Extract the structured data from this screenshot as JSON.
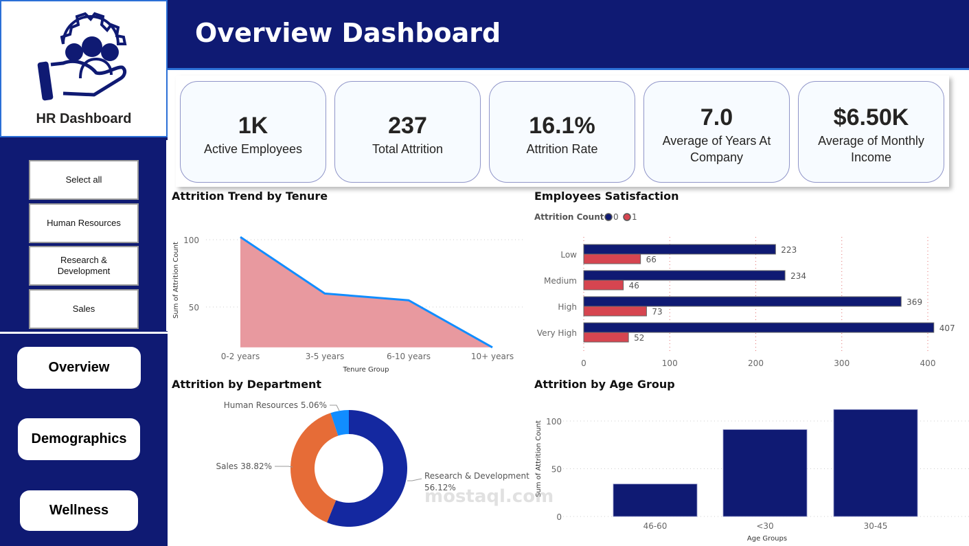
{
  "logo": {
    "title": "HR Dashboard",
    "icon": "hand-people-gear-icon"
  },
  "header": {
    "title": "Overview Dashboard"
  },
  "slicer": {
    "items": [
      "Select all",
      "Human Resources",
      "Research & Development",
      "Sales"
    ]
  },
  "nav": {
    "items": [
      "Overview",
      "Demographics",
      "Wellness"
    ]
  },
  "kpis": [
    {
      "value": "1K",
      "label": "Active Employees"
    },
    {
      "value": "237",
      "label": "Total Attrition"
    },
    {
      "value": "16.1%",
      "label": "Attrition Rate"
    },
    {
      "value": "7.0",
      "label": "Average of Years At Company"
    },
    {
      "value": "$6.50K",
      "label": "Average of Monthly Income"
    }
  ],
  "colors": {
    "navy": "#0f1a73",
    "accent_blue": "#118dff",
    "red": "#d64550",
    "area_fill": "#e8999f",
    "orange": "#e66c37",
    "rd_blue": "#1428a0"
  },
  "watermark": "mostaql.com",
  "chart_data": [
    {
      "type": "area",
      "title": "Attrition Trend by Tenure",
      "xlabel": "Tenure Group",
      "ylabel": "Sum of Attrition Count",
      "categories": [
        "0-2 years",
        "3-5 years",
        "6-10 years",
        "10+ years"
      ],
      "values": [
        102,
        60,
        55,
        20
      ],
      "yticks": [
        50,
        100
      ],
      "ylim": [
        20,
        110
      ],
      "grid": true
    },
    {
      "type": "bar",
      "orientation": "horizontal",
      "title": "Employees Satisfaction",
      "legend_title": "Attrition Count",
      "legend_position": "top-left",
      "categories": [
        "Low",
        "Medium",
        "High",
        "Very High"
      ],
      "series": [
        {
          "name": "0",
          "color": "#0f1a73",
          "values": [
            223,
            234,
            369,
            407
          ]
        },
        {
          "name": "1",
          "color": "#d64550",
          "values": [
            66,
            46,
            73,
            52
          ]
        }
      ],
      "xticks": [
        0,
        100,
        200,
        300,
        400
      ],
      "xlim": [
        0,
        410
      ],
      "grid": true
    },
    {
      "type": "pie",
      "subtype": "donut",
      "title": "Attrition by Department",
      "slices": [
        {
          "label": "Research & Development",
          "pct_label": "56.12%",
          "value": 56.12,
          "color": "#1428a0"
        },
        {
          "label": "Sales",
          "pct_label": "38.82%",
          "value": 38.82,
          "color": "#e66c37"
        },
        {
          "label": "Human Resources",
          "pct_label": "5.06%",
          "value": 5.06,
          "color": "#118dff"
        }
      ]
    },
    {
      "type": "bar",
      "title": "Attrition by Age Group",
      "xlabel": "Age Groups",
      "ylabel": "Sum of Attrition Count",
      "categories": [
        "46-60",
        "<30",
        "30-45"
      ],
      "values": [
        34,
        91,
        112
      ],
      "yticks": [
        0,
        50,
        100
      ],
      "ylim": [
        0,
        115
      ],
      "grid": true
    }
  ]
}
